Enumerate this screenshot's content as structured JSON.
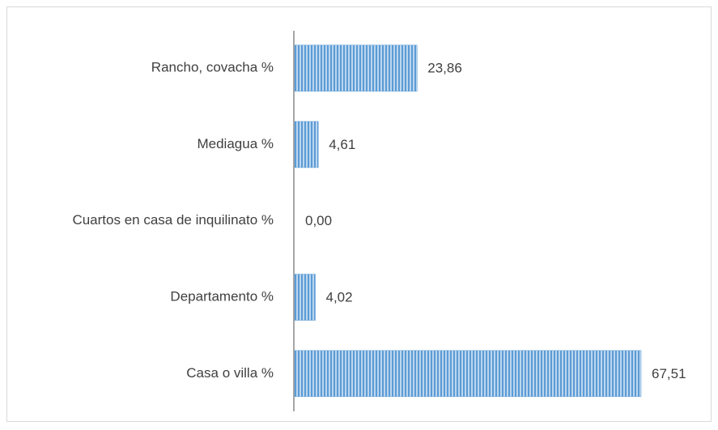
{
  "chart_data": {
    "type": "bar",
    "orientation": "horizontal",
    "categories": [
      "Rancho, covacha %",
      "Mediagua %",
      "Cuartos en casa de inquilinato %",
      "Departamento %",
      "Casa o villa %"
    ],
    "values": [
      23.86,
      4.61,
      0.0,
      4.02,
      67.51
    ],
    "value_labels": [
      "23,86",
      "4,61",
      "0,00",
      "4,02",
      "67,51"
    ],
    "color": "#5b9bd5"
  }
}
